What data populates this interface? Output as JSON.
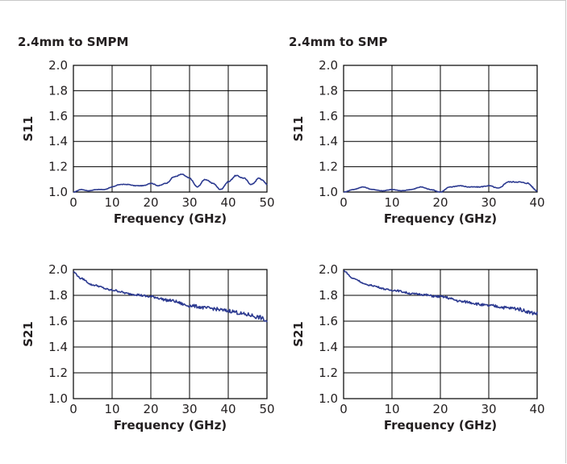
{
  "sections": [
    {
      "title": "2.4mm to SMPM"
    },
    {
      "title": "2.4mm to SMP"
    }
  ],
  "colors": {
    "trace": "#2b3990",
    "grid": "#000000",
    "text": "#231f20",
    "frame": "#c8c8c8"
  },
  "chart_data": [
    {
      "type": "line",
      "title": "2.4mm to SMPM",
      "xlabel": "Frequency (GHz)",
      "ylabel": "S11",
      "xlim": [
        0,
        50
      ],
      "ylim": [
        1.0,
        2.0
      ],
      "xticks": [
        "0",
        "10",
        "20",
        "30",
        "40",
        "50"
      ],
      "yticks": [
        "1.0",
        "1.2",
        "1.4",
        "1.6",
        "1.8",
        "2.0"
      ],
      "grid": true,
      "noise": 0.003,
      "series": [
        {
          "x": [
            0,
            2,
            4,
            6,
            8,
            10,
            12,
            14,
            16,
            18,
            20,
            22,
            24,
            26,
            28,
            30,
            32,
            34,
            36,
            38,
            40,
            42,
            44,
            46,
            48,
            49,
            50
          ],
          "y": [
            1.0,
            1.02,
            1.01,
            1.02,
            1.02,
            1.04,
            1.06,
            1.06,
            1.05,
            1.05,
            1.07,
            1.05,
            1.07,
            1.12,
            1.14,
            1.11,
            1.04,
            1.1,
            1.07,
            1.02,
            1.08,
            1.13,
            1.11,
            1.06,
            1.11,
            1.09,
            1.06
          ]
        }
      ]
    },
    {
      "type": "line",
      "title": "2.4mm to SMP",
      "xlabel": "Frequency (GHz)",
      "ylabel": "S11",
      "xlim": [
        0,
        40
      ],
      "ylim": [
        1.0,
        2.0
      ],
      "xticks": [
        "0",
        "10",
        "20",
        "30",
        "40"
      ],
      "yticks": [
        "1.0",
        "1.2",
        "1.4",
        "1.6",
        "1.8",
        "2.0"
      ],
      "grid": true,
      "noise": 0.003,
      "series": [
        {
          "x": [
            0,
            2,
            4,
            6,
            8,
            10,
            12,
            14,
            16,
            18,
            20,
            22,
            24,
            26,
            28,
            30,
            32,
            34,
            36,
            38,
            40
          ],
          "y": [
            1.0,
            1.02,
            1.04,
            1.02,
            1.01,
            1.02,
            1.01,
            1.02,
            1.04,
            1.02,
            1.0,
            1.04,
            1.05,
            1.04,
            1.04,
            1.05,
            1.03,
            1.08,
            1.08,
            1.07,
            1.01
          ]
        }
      ]
    },
    {
      "type": "line",
      "title": "",
      "xlabel": "Frequency (GHz)",
      "ylabel": "S21",
      "xlim": [
        0,
        50
      ],
      "ylim": [
        1.0,
        2.0
      ],
      "xticks": [
        "0",
        "10",
        "20",
        "30",
        "40",
        "50"
      ],
      "yticks": [
        "1.0",
        "1.2",
        "1.4",
        "1.6",
        "1.8",
        "2.0"
      ],
      "grid": true,
      "noise": 0.012,
      "series": [
        {
          "x": [
            0,
            2,
            5,
            10,
            15,
            20,
            25,
            30,
            35,
            40,
            45,
            48,
            50
          ],
          "y": [
            1.98,
            1.93,
            1.88,
            1.84,
            1.81,
            1.79,
            1.76,
            1.72,
            1.7,
            1.68,
            1.65,
            1.63,
            1.6
          ]
        }
      ]
    },
    {
      "type": "line",
      "title": "",
      "xlabel": "Frequency (GHz)",
      "ylabel": "S21",
      "xlim": [
        0,
        40
      ],
      "ylim": [
        1.0,
        2.0
      ],
      "xticks": [
        "0",
        "10",
        "20",
        "30",
        "40"
      ],
      "yticks": [
        "1.0",
        "1.2",
        "1.4",
        "1.6",
        "1.8",
        "2.0"
      ],
      "grid": true,
      "noise": 0.01,
      "series": [
        {
          "x": [
            0,
            2,
            5,
            10,
            15,
            20,
            25,
            30,
            35,
            40
          ],
          "y": [
            1.99,
            1.93,
            1.88,
            1.84,
            1.81,
            1.79,
            1.75,
            1.72,
            1.7,
            1.66
          ]
        }
      ]
    }
  ]
}
